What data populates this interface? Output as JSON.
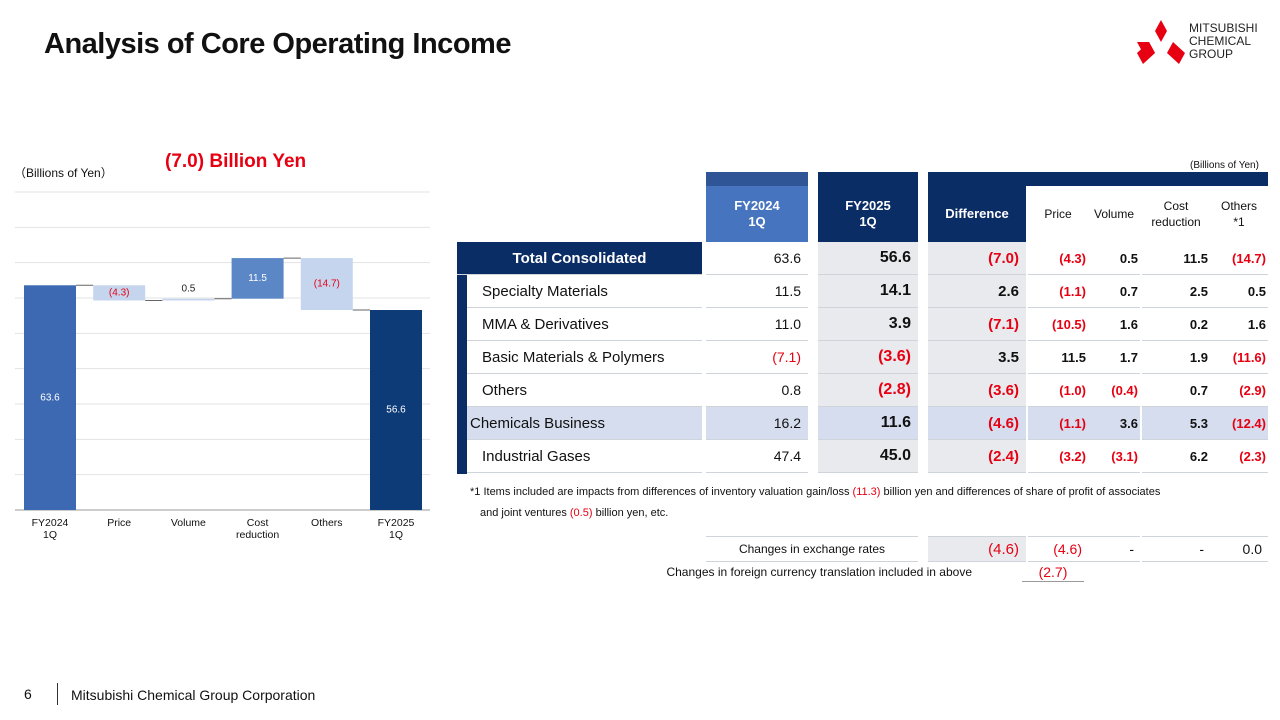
{
  "header": {
    "title": "Analysis of Core Operating Income",
    "logo": [
      "MITSUBISHI",
      "CHEMICAL",
      "GROUP"
    ]
  },
  "chart_data": {
    "type": "waterfall",
    "unit": "（Billions of Yen）",
    "headline": "(7.0) Billion Yen",
    "categories": [
      "FY2024\n1Q",
      "Price",
      "Volume",
      "Cost\nreduction",
      "Others",
      "FY2025\n1Q"
    ],
    "values": [
      63.6,
      -4.3,
      0.5,
      11.5,
      -14.7,
      56.6
    ],
    "value_labels": [
      "63.6",
      "(4.3)",
      "0.5",
      "11.5",
      "(14.7)",
      "56.6"
    ],
    "colors": [
      "#3d68b2",
      "#c6d5ee",
      "#c6d5ee",
      "#5b87c7",
      "#c6d5ee",
      "#0d3b78"
    ],
    "ylim": [
      0,
      90
    ],
    "yticks": [
      0,
      10,
      20,
      30,
      40,
      50,
      60,
      70,
      80,
      90
    ],
    "grid": true
  },
  "table": {
    "unit": "(Billions of Yen)",
    "columns": [
      "FY2024\n1Q",
      "FY2025\n1Q",
      "Difference",
      "Price",
      "Volume",
      "Cost\nreduction",
      "Others\n*1"
    ],
    "rows": [
      [
        "Total Consolidated",
        "63.6",
        "56.6",
        "(7.0)",
        "(4.3)",
        "0.5",
        "11.5",
        "(14.7)"
      ],
      [
        "Specialty Materials",
        "11.5",
        "14.1",
        "2.6",
        "(1.1)",
        "0.7",
        "2.5",
        "0.5"
      ],
      [
        "MMA & Derivatives",
        "11.0",
        "3.9",
        "(7.1)",
        "(10.5)",
        "1.6",
        "0.2",
        "1.6"
      ],
      [
        "Basic Materials & Polymers",
        "(7.1)",
        "(3.6)",
        "3.5",
        "11.5",
        "1.7",
        "1.9",
        "(11.6)"
      ],
      [
        "Others",
        "0.8",
        "(2.8)",
        "(3.6)",
        "(1.0)",
        "(0.4)",
        "0.7",
        "(2.9)"
      ],
      [
        "Chemicals Business",
        "16.2",
        "11.6",
        "(4.6)",
        "(1.1)",
        "3.6",
        "5.3",
        "(12.4)"
      ],
      [
        "Industrial Gases",
        "47.4",
        "45.0",
        "(2.4)",
        "(3.2)",
        "(3.1)",
        "6.2",
        "(2.3)"
      ]
    ],
    "footnote": [
      "*1  Items included are impacts from differences of inventory valuation gain/loss ",
      "(11.3)",
      " billion yen and differences of share of profit of associates and joint ventures ",
      "(0.5)",
      " billion yen, etc."
    ],
    "exchange": {
      "label": "Changes in exchange rates",
      "values": [
        "(4.6)",
        "(4.6)",
        "-",
        "-",
        "0.0"
      ]
    },
    "translation": {
      "label": "Changes in foreign currency translation included in above",
      "value": "(2.7)"
    }
  },
  "footer": {
    "page": "6",
    "company": "Mitsubishi Chemical Group Corporation"
  }
}
